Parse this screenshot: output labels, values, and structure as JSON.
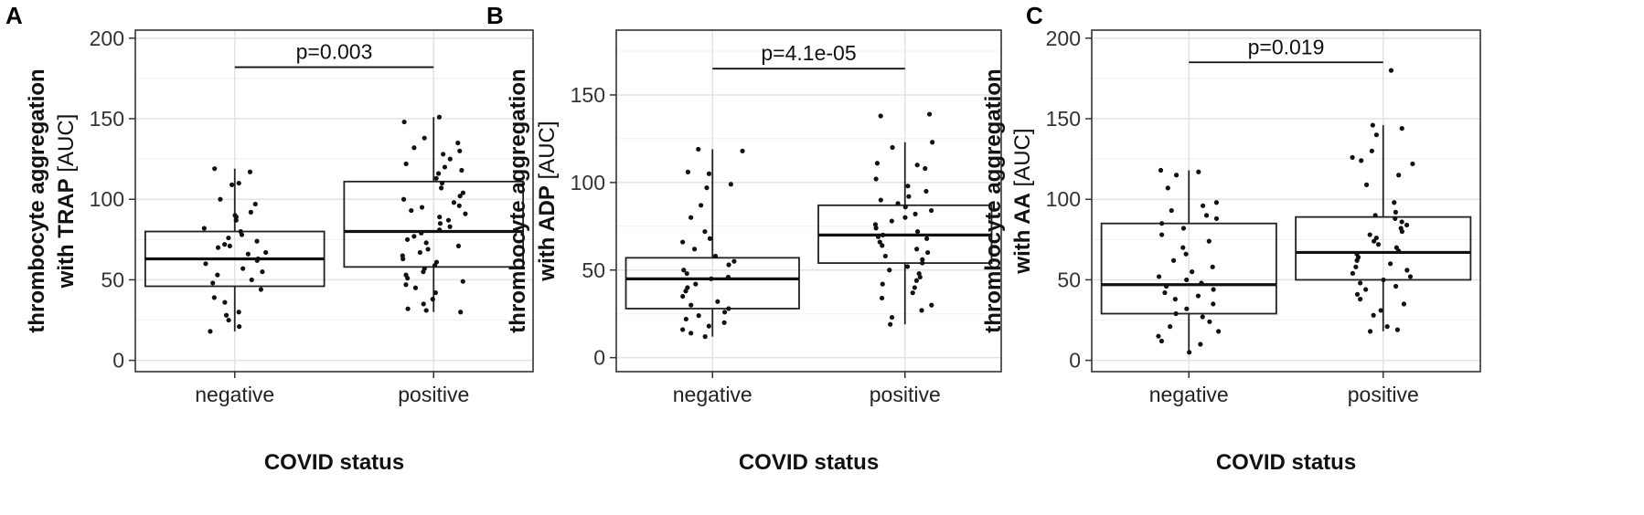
{
  "chart_data": [
    {
      "type": "box",
      "panel_label": "A",
      "categories": [
        "negative",
        "positive"
      ],
      "xlabel": "COVID status",
      "ylabel_bold": "thrombocyte aggregation",
      "ylabel_line2": "with TRAP",
      "ylabel_unit": "[AUC]",
      "ylim": [
        -7,
        205
      ],
      "yticks": [
        0,
        50,
        100,
        150,
        200
      ],
      "grid": true,
      "pvalue": "p=0.003",
      "bracket_y": 182,
      "boxes": [
        {
          "category": "negative",
          "whisker_low": 18,
          "q1": 46,
          "median": 63,
          "q3": 80,
          "whisker_high": 119
        },
        {
          "category": "positive",
          "whisker_low": 30,
          "q1": 58,
          "median": 80,
          "q3": 111,
          "whisker_high": 151
        }
      ],
      "points": [
        {
          "category": "negative",
          "values": [
            119,
            117,
            110,
            109,
            100,
            97,
            92,
            90,
            89,
            87,
            82,
            80,
            78,
            76,
            74,
            72,
            71,
            70,
            67,
            66,
            63,
            62,
            60,
            57,
            55,
            53,
            50,
            48,
            44,
            39,
            36,
            30,
            28,
            25,
            21,
            18
          ]
        },
        {
          "category": "positive",
          "values": [
            151,
            148,
            138,
            135,
            132,
            130,
            128,
            125,
            122,
            120,
            118,
            116,
            113,
            110,
            107,
            104,
            102,
            100,
            98,
            96,
            95,
            93,
            91,
            89,
            87,
            85,
            83,
            81,
            79,
            77,
            75,
            73,
            71,
            69,
            67,
            65,
            63,
            61,
            59,
            57,
            55,
            53,
            51,
            49,
            47,
            45,
            42,
            38,
            35,
            32,
            31,
            30
          ]
        }
      ]
    },
    {
      "type": "box",
      "panel_label": "B",
      "categories": [
        "negative",
        "positive"
      ],
      "xlabel": "COVID status",
      "ylabel_bold": "thrombocyte aggregation",
      "ylabel_line2": "with ADP",
      "ylabel_unit": "[AUC]",
      "ylim": [
        -8,
        187
      ],
      "yticks": [
        0,
        50,
        100,
        150
      ],
      "grid": true,
      "pvalue": "p=4.1e-05",
      "bracket_y": 165,
      "boxes": [
        {
          "category": "negative",
          "whisker_low": 12,
          "q1": 28,
          "median": 45,
          "q3": 57,
          "whisker_high": 119
        },
        {
          "category": "positive",
          "whisker_low": 19,
          "q1": 54,
          "median": 70,
          "q3": 87,
          "whisker_high": 123
        }
      ],
      "points": [
        {
          "category": "negative",
          "values": [
            119,
            118,
            106,
            105,
            99,
            97,
            87,
            80,
            72,
            68,
            66,
            62,
            58,
            55,
            53,
            50,
            48,
            46,
            45,
            42,
            40,
            38,
            35,
            32,
            30,
            28,
            26,
            24,
            22,
            20,
            18,
            16,
            14,
            12
          ]
        },
        {
          "category": "positive",
          "values": [
            139,
            138,
            123,
            120,
            111,
            110,
            108,
            102,
            98,
            95,
            92,
            90,
            88,
            86,
            84,
            82,
            80,
            78,
            76,
            74,
            72,
            70,
            69,
            68,
            66,
            64,
            62,
            60,
            58,
            56,
            54,
            52,
            50,
            48,
            46,
            44,
            42,
            40,
            37,
            34,
            30,
            27,
            23,
            19
          ]
        }
      ]
    },
    {
      "type": "box",
      "panel_label": "C",
      "categories": [
        "negative",
        "positive"
      ],
      "xlabel": "COVID status",
      "ylabel_bold": "thrombocyte aggregation",
      "ylabel_line2": "with AA",
      "ylabel_unit": "[AUC]",
      "ylim": [
        -7,
        205
      ],
      "yticks": [
        0,
        50,
        100,
        150,
        200
      ],
      "grid": true,
      "pvalue": "p=0.019",
      "bracket_y": 185,
      "boxes": [
        {
          "category": "negative",
          "whisker_low": 5,
          "q1": 29,
          "median": 47,
          "q3": 85,
          "whisker_high": 118
        },
        {
          "category": "positive",
          "whisker_low": 18,
          "q1": 50,
          "median": 67,
          "q3": 89,
          "whisker_high": 146
        }
      ],
      "points": [
        {
          "category": "negative",
          "values": [
            118,
            117,
            115,
            107,
            98,
            96,
            93,
            90,
            88,
            85,
            82,
            78,
            74,
            70,
            66,
            62,
            58,
            55,
            52,
            50,
            48,
            46,
            44,
            42,
            40,
            38,
            35,
            32,
            29,
            27,
            24,
            21,
            18,
            15,
            12,
            10,
            5
          ]
        },
        {
          "category": "positive",
          "values": [
            180,
            146,
            144,
            140,
            130,
            126,
            124,
            122,
            115,
            109,
            98,
            92,
            90,
            88,
            86,
            84,
            82,
            80,
            78,
            76,
            74,
            72,
            70,
            68,
            66,
            64,
            62,
            60,
            58,
            56,
            54,
            52,
            50,
            48,
            46,
            44,
            41,
            38,
            35,
            31,
            28,
            21,
            19,
            18
          ]
        }
      ]
    }
  ]
}
